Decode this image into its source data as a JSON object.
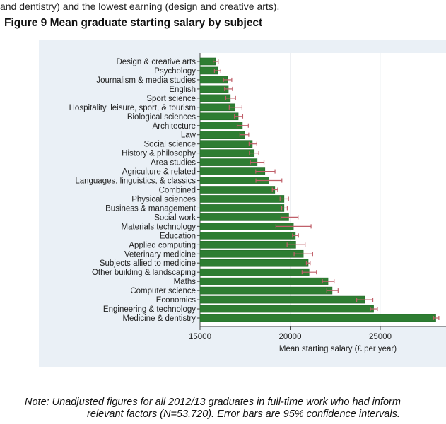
{
  "intro_text": "and dentistry) and the lowest earning (design and creative arts).",
  "figure_title": "Figure 9 Mean graduate starting salary by subject",
  "note_lines": [
    "Note: Unadjusted figures for all 2012/13 graduates in full-time work who had inform",
    "relevant factors (N=53,720). Error bars are 95% confidence intervals."
  ],
  "colors": {
    "bar": "#2e7d32",
    "error_bar": "#c0606a",
    "panel": "#eaf0f6"
  },
  "chart_data": {
    "type": "bar",
    "orientation": "horizontal",
    "xlabel": "Mean starting salary (£ per year)",
    "xlim": [
      15000,
      28700
    ],
    "xticks": [
      15000,
      20000,
      25000
    ],
    "grid": true,
    "categories": [
      "Design & creative arts",
      "Psychology",
      "Journalism & media studies",
      "English",
      "Sport science",
      "Hospitality, leisure, sport, & tourism",
      "Biological sciences",
      "Architecture",
      "Law",
      "Social science",
      "History & philosophy",
      "Area studies",
      "Agriculture & related",
      "Languages, linguistics, & classics",
      "Combined",
      "Physical sciences",
      "Business & management",
      "Social work",
      "Materials technology",
      "Education",
      "Applied computing",
      "Veterinary medicine",
      "Subjects allied to medicine",
      "Other building & landscaping",
      "Maths",
      "Computer science",
      "Economics",
      "Engineering & technology",
      "Medicine & dentistry"
    ],
    "values": [
      15850,
      15970,
      16520,
      16570,
      16680,
      16950,
      17120,
      17350,
      17470,
      17900,
      18010,
      18170,
      18600,
      18820,
      19150,
      19660,
      19660,
      19920,
      20180,
      20290,
      20310,
      20730,
      21000,
      21050,
      22100,
      22330,
      24130,
      24630,
      28080
    ],
    "ci_low": [
      15730,
      15800,
      16300,
      16360,
      16430,
      16620,
      16910,
      17060,
      17210,
      17720,
      17740,
      17790,
      18090,
      18100,
      19010,
      19440,
      19530,
      19490,
      19210,
      20130,
      19830,
      20220,
      20900,
      20660,
      21790,
      22030,
      23690,
      24450,
      27950
    ],
    "ci_high": [
      16010,
      16150,
      16760,
      16800,
      16970,
      17330,
      17370,
      17680,
      17700,
      18150,
      18260,
      18550,
      19160,
      19540,
      19310,
      19910,
      19840,
      20440,
      21160,
      20460,
      20830,
      21250,
      21110,
      21460,
      22440,
      22660,
      24590,
      24840,
      28250
    ]
  }
}
